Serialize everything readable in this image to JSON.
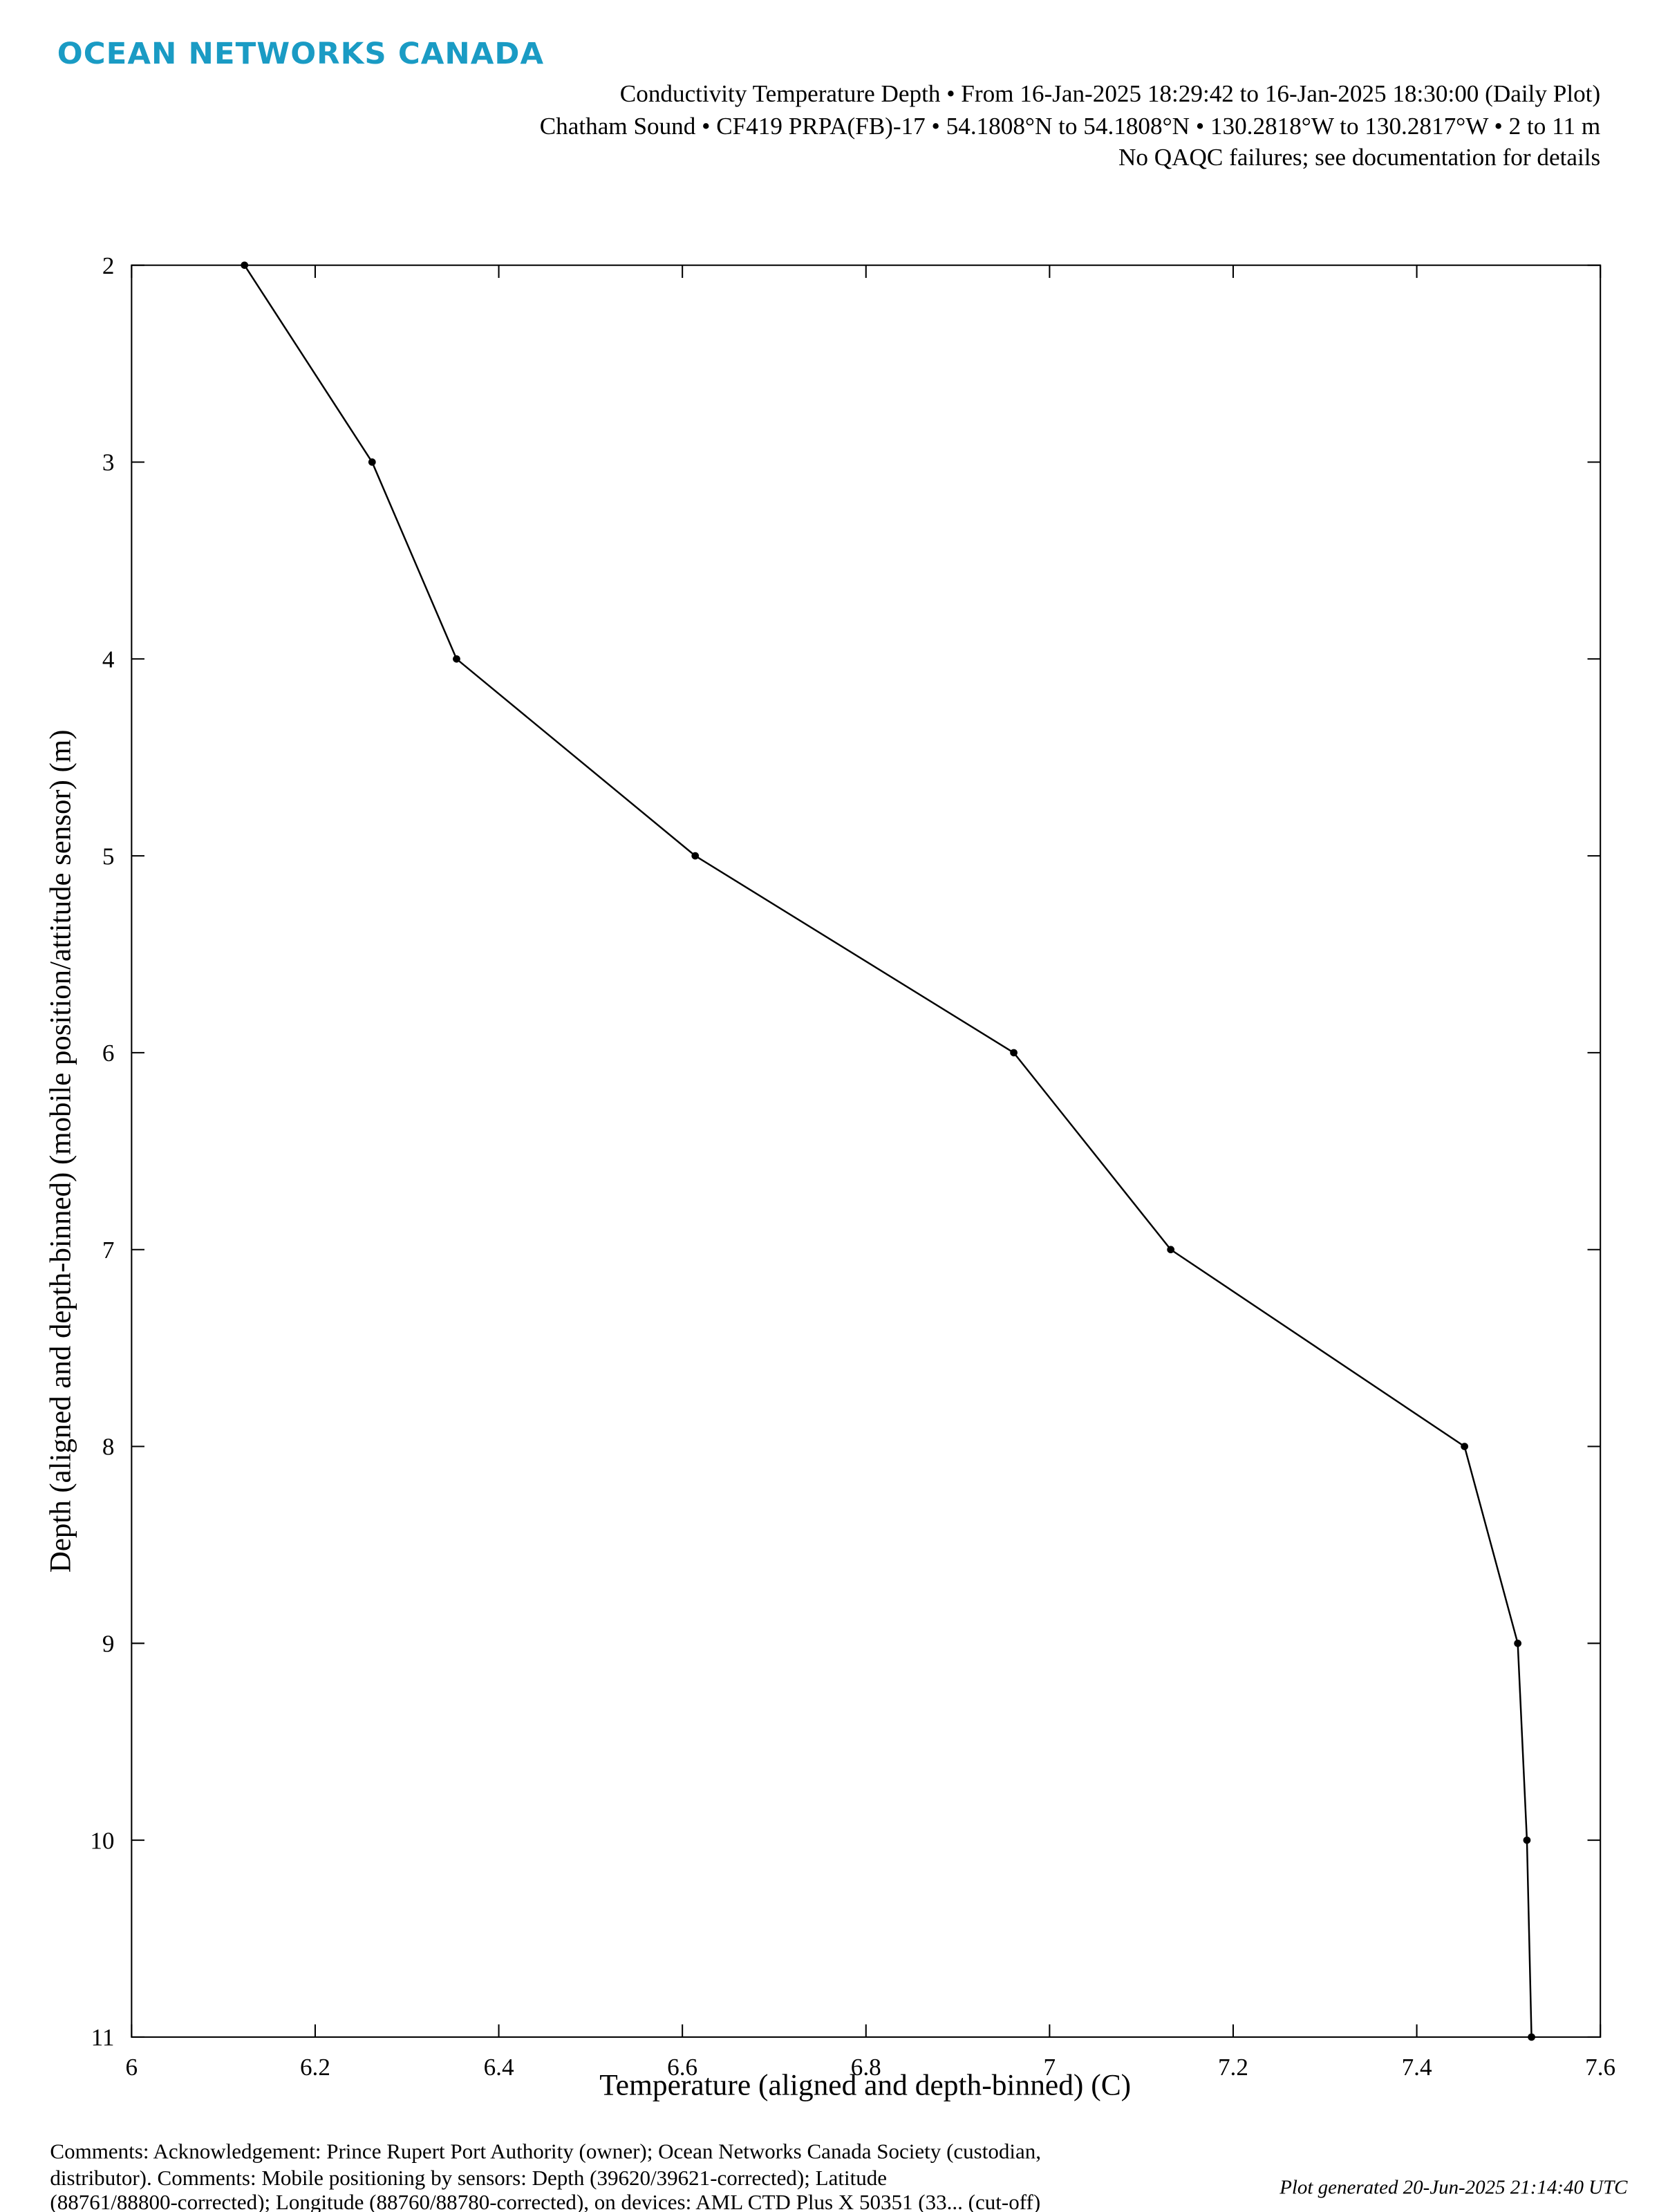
{
  "logo": "OCEAN NETWORKS CANADA",
  "header": [
    "Conductivity Temperature Depth • From 16-Jan-2025 18:29:42 to 16-Jan-2025 18:30:00 (Daily Plot)",
    "Chatham Sound • CF419 PRPA(FB)-17 • 54.1808°N to 54.1808°N • 130.2818°W to 130.2817°W • 2 to 11 m",
    "No QAQC failures; see documentation for details"
  ],
  "chart_data": {
    "type": "line",
    "x_label": "Temperature (aligned and depth-binned) (C)",
    "y_label": "Depth (aligned and depth-binned) (mobile position/attitude sensor) (m)",
    "x": [
      6.123,
      6.262,
      6.354,
      6.614,
      6.961,
      7.132,
      7.452,
      7.51,
      7.52,
      7.525
    ],
    "series": [
      {
        "color": "#000000",
        "values": [
          2,
          3,
          4,
          5,
          6,
          7,
          8,
          9,
          10,
          11
        ]
      }
    ],
    "xlim": [
      6,
      7.6
    ],
    "xticks": [
      6,
      6.2,
      6.4,
      6.6,
      6.8,
      7,
      7.2,
      7.4,
      7.6
    ],
    "ylim": [
      2,
      11
    ],
    "yticks": [
      2,
      3,
      4,
      5,
      6,
      7,
      8,
      9,
      10,
      11
    ],
    "y_reversed": true,
    "grid": false
  },
  "footer": {
    "comments": [
      "Comments: Acknowledgement: Prince Rupert Port Authority (owner); Ocean Networks Canada Society (custodian,",
      "distributor). Comments: Mobile positioning by sensors: Depth (39620/39621-corrected); Latitude",
      "(88761/88800-corrected); Longitude (88760/88780-corrected), on devices: AML CTD Plus X 50351 (33... (cut-off)"
    ],
    "generated": "Plot generated 20-Jun-2025 21:14:40 UTC"
  }
}
